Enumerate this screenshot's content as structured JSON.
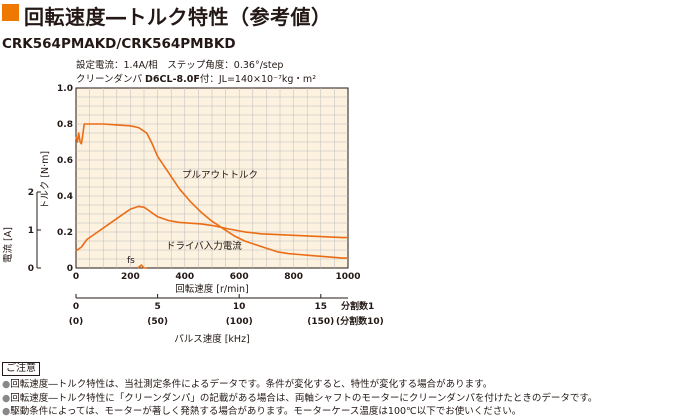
{
  "title": "回転速度―トルク特性（参考値）",
  "model": "CRK564PMAKD/CRK564PMBKD",
  "conditions": {
    "line1": "設定電流：1.4A/相　ステップ角度：0.36°/step",
    "line2_prefix": "クリーンダンパ ",
    "line2_damper": "D6CL-8.0F",
    "line2_suffix": "付：JL=140×10⁻⁷kg・m²"
  },
  "chart_data": {
    "type": "line",
    "xlabel": "回転速度 [r/min]",
    "x_ticks": [
      "0",
      "200",
      "400",
      "600",
      "800",
      "1000"
    ],
    "xlim": [
      0,
      1000
    ],
    "torque_axis": {
      "label": "トルク [N·m]",
      "ticks": [
        "0",
        "0.2",
        "0.4",
        "0.6",
        "0.8",
        "1.0"
      ],
      "ylim": [
        0,
        1.0
      ]
    },
    "current_axis": {
      "label": "電流 [A]",
      "ticks": [
        "0",
        "1",
        "2"
      ],
      "ylim": [
        0,
        2
      ]
    },
    "pulse_axis": {
      "label": "パルス速度 [kHz]",
      "ticks_top": [
        "0",
        "5",
        "10",
        "15"
      ],
      "ticks_bottom": [
        "(0)",
        "(50)",
        "(100)",
        "(150)"
      ],
      "ticks_khz": [
        0,
        5,
        10,
        15
      ],
      "division1_label": "分割数1",
      "division10_label": "(分割数10)"
    },
    "grid": true,
    "background": "#fdf1e0",
    "line_color": "#ea6d16",
    "series": [
      {
        "name": "プルアウトトルク",
        "axis": "torque",
        "x": [
          0,
          5,
          10,
          15,
          20,
          25,
          30,
          40,
          60,
          100,
          150,
          200,
          230,
          260,
          280,
          300,
          340,
          380,
          420,
          460,
          500,
          540,
          580,
          620,
          660,
          700,
          740,
          780,
          820,
          860,
          900,
          940,
          980,
          1000
        ],
        "y": [
          0.73,
          0.7,
          0.75,
          0.7,
          0.69,
          0.74,
          0.8,
          0.8,
          0.8,
          0.8,
          0.795,
          0.79,
          0.78,
          0.75,
          0.69,
          0.62,
          0.53,
          0.44,
          0.37,
          0.31,
          0.26,
          0.22,
          0.18,
          0.15,
          0.13,
          0.11,
          0.09,
          0.08,
          0.075,
          0.07,
          0.065,
          0.06,
          0.055,
          0.055
        ]
      },
      {
        "name": "ドライバ入力電流",
        "axis": "current",
        "x": [
          0,
          20,
          40,
          80,
          120,
          160,
          200,
          230,
          250,
          270,
          300,
          340,
          380,
          420,
          460,
          500,
          560,
          620,
          680,
          740,
          800,
          860,
          920,
          980,
          1000
        ],
        "y": [
          0.45,
          0.55,
          0.75,
          0.95,
          1.15,
          1.35,
          1.55,
          1.62,
          1.6,
          1.5,
          1.35,
          1.25,
          1.2,
          1.18,
          1.16,
          1.12,
          1.03,
          0.95,
          0.9,
          0.88,
          0.86,
          0.84,
          0.82,
          0.8,
          0.8
        ]
      },
      {
        "name": "fs",
        "axis": "current",
        "x": [
          228,
          240,
          250,
          260
        ],
        "y": [
          0.0,
          0.08,
          0.0,
          0.0
        ]
      }
    ],
    "annotations": {
      "pullout": "プルアウトトルク",
      "current": "ドライバ入力電流",
      "fs": "fs"
    }
  },
  "notes": {
    "heading": "ご注意",
    "items": [
      "回転速度―トルク特性は、当社測定条件によるデータです。条件が変化すると、特性が変化する場合があります。",
      "回転速度―トルク特性に「クリーンダンパ」の記載がある場合は、両軸シャフトのモーターにクリーンダンパを付けたときのデータです。",
      "駆動条件によっては、モーターが著しく発熱する場合があります。モーターケース温度は100℃以下でお使いください。"
    ],
    "bullet": "●"
  }
}
